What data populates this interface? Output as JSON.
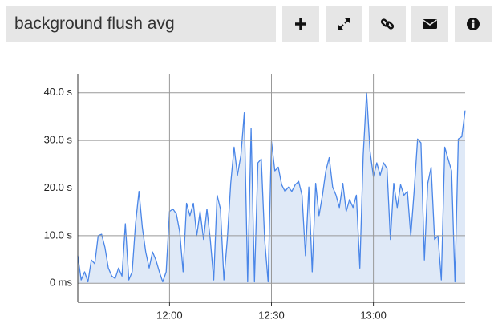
{
  "header": {
    "title": "background flush avg"
  },
  "chart_data": {
    "type": "line",
    "x": [
      "11:33",
      "11:34",
      "11:35",
      "11:36",
      "11:37",
      "11:38",
      "11:39",
      "11:40",
      "11:41",
      "11:42",
      "11:43",
      "11:44",
      "11:45",
      "11:46",
      "11:47",
      "11:48",
      "11:49",
      "11:50",
      "11:51",
      "11:52",
      "11:53",
      "11:54",
      "11:55",
      "11:56",
      "11:57",
      "11:58",
      "11:59",
      "12:00",
      "12:01",
      "12:02",
      "12:03",
      "12:04",
      "12:05",
      "12:06",
      "12:07",
      "12:08",
      "12:09",
      "12:10",
      "12:11",
      "12:12",
      "12:13",
      "12:14",
      "12:15",
      "12:16",
      "12:17",
      "12:18",
      "12:19",
      "12:20",
      "12:21",
      "12:22",
      "12:23",
      "12:24",
      "12:25",
      "12:26",
      "12:27",
      "12:28",
      "12:29",
      "12:30",
      "12:31",
      "12:32",
      "12:33",
      "12:34",
      "12:35",
      "12:36",
      "12:37",
      "12:38",
      "12:39",
      "12:40",
      "12:41",
      "12:42",
      "12:43",
      "12:44",
      "12:45",
      "12:46",
      "12:47",
      "12:48",
      "12:49",
      "12:50",
      "12:51",
      "12:52",
      "12:53",
      "12:54",
      "12:55",
      "12:56",
      "12:57",
      "12:58",
      "12:59",
      "13:00",
      "13:01",
      "13:02",
      "13:03",
      "13:04",
      "13:05",
      "13:06",
      "13:07",
      "13:08",
      "13:09",
      "13:10",
      "13:11",
      "13:12",
      "13:13",
      "13:14",
      "13:15",
      "13:16",
      "13:17",
      "13:18",
      "13:19",
      "13:20",
      "13:21",
      "13:22",
      "13:23",
      "13:24",
      "13:25",
      "13:26",
      "13:27"
    ],
    "series": [
      {
        "color": "#4a86e8",
        "fill": "#dfe9f7",
        "values": [
          5.8,
          0.7,
          2.4,
          0.3,
          4.9,
          4.1,
          10.0,
          10.3,
          7.5,
          3.2,
          1.5,
          1.0,
          3.2,
          1.5,
          12.5,
          0.7,
          2.4,
          12.5,
          19.3,
          11.7,
          6.6,
          3.2,
          6.6,
          4.9,
          2.4,
          0.3,
          2.4,
          15.1,
          15.6,
          14.6,
          10.8,
          2.4,
          16.8,
          14.2,
          16.8,
          10.0,
          15.1,
          9.2,
          15.6,
          9.2,
          0.7,
          18.5,
          15.6,
          0.7,
          9.2,
          21.0,
          28.6,
          22.7,
          26.9,
          35.8,
          0.3,
          32.5,
          0.3,
          25.3,
          26.1,
          9.2,
          0.3,
          29.8,
          23.6,
          24.4,
          20.7,
          19.3,
          20.2,
          19.3,
          20.7,
          21.4,
          18.5,
          5.8,
          20.2,
          2.4,
          21.0,
          14.2,
          18.5,
          23.6,
          26.4,
          20.2,
          18.5,
          15.9,
          21.0,
          15.1,
          17.6,
          15.9,
          18.5,
          3.2,
          26.9,
          40.0,
          27.8,
          22.4,
          25.3,
          22.7,
          25.3,
          24.1,
          9.2,
          21.0,
          15.9,
          20.7,
          18.5,
          19.3,
          10.0,
          19.3,
          30.3,
          29.5,
          4.9,
          21.0,
          24.4,
          9.2,
          10.0,
          0.7,
          28.6,
          26.1,
          23.6,
          0.3,
          30.3,
          30.8,
          36.3
        ]
      }
    ],
    "xlim": [
      "11:33",
      "13:27"
    ],
    "xticks": [
      "12:00",
      "12:30",
      "13:00"
    ],
    "ylim": [
      -4,
      44
    ],
    "yticks": [
      {
        "value": 0,
        "label": "0 ms"
      },
      {
        "value": 10,
        "label": "10.0 s"
      },
      {
        "value": 20,
        "label": "20.0 s"
      },
      {
        "value": 30,
        "label": "30.0 s"
      },
      {
        "value": 40,
        "label": "40.0 s"
      }
    ],
    "grid": true
  }
}
